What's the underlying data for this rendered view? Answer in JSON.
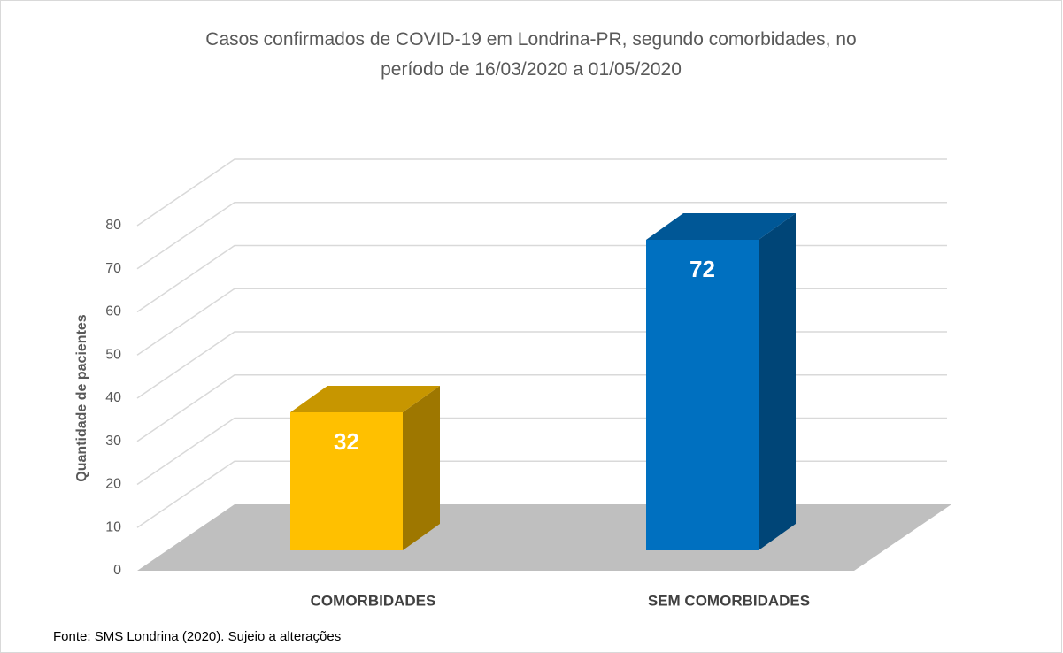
{
  "chart_data": {
    "type": "bar3d",
    "title": "Casos confirmados de COVID-19 em Londrina-PR, segundo comorbidades, no período de 16/03/2020 a 01/05/2020",
    "ylabel": "Quantidade de pacientes",
    "categories": [
      "COMORBIDADES",
      "SEM COMORBIDADES"
    ],
    "values": [
      32,
      72
    ],
    "colors": [
      "#ffc000",
      "#0070c0"
    ],
    "ylim": [
      0,
      80
    ],
    "yticks": [
      0,
      10,
      20,
      30,
      40,
      50,
      60,
      70,
      80
    ],
    "grid": true,
    "source": "Fonte: SMS Londrina (2020). Sujeio a alterações"
  }
}
